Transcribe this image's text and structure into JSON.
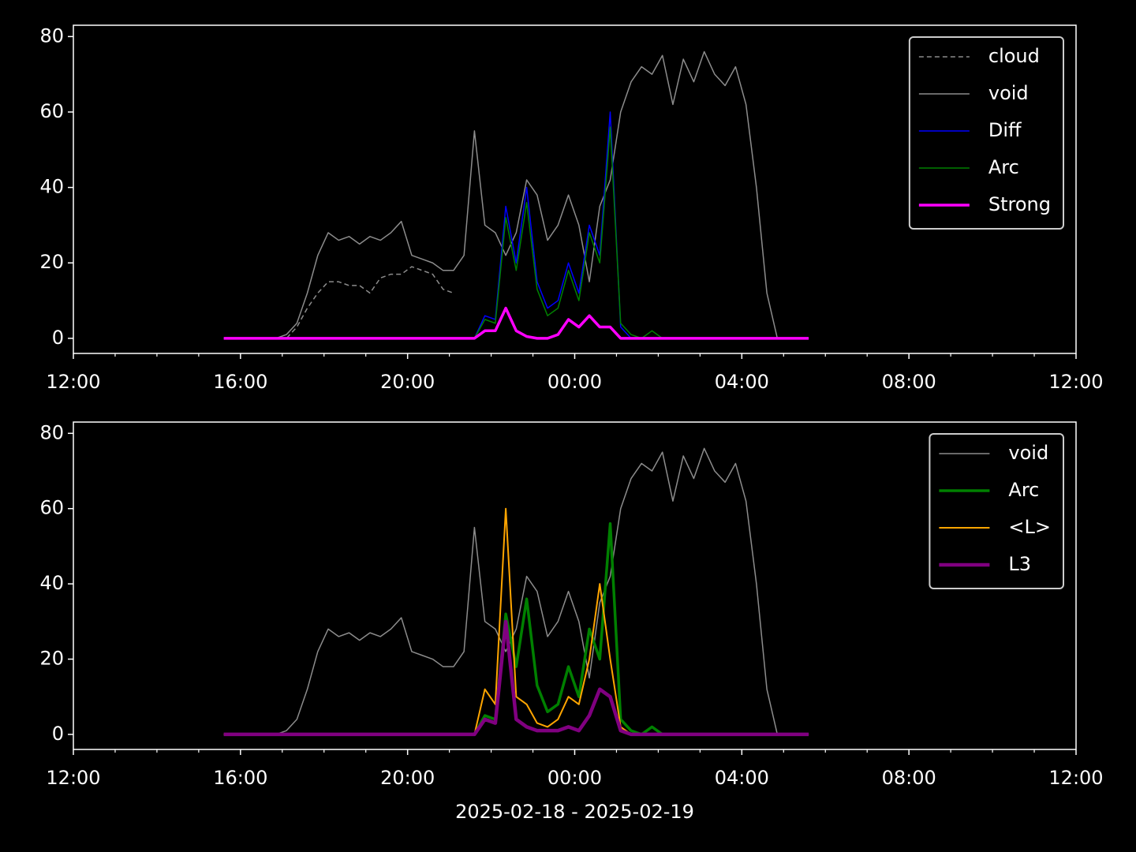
{
  "chart_data": [
    {
      "type": "line",
      "x": [
        15.6,
        15.85,
        16.1,
        16.35,
        16.6,
        16.85,
        17.1,
        17.35,
        17.6,
        17.85,
        18.1,
        18.35,
        18.6,
        18.85,
        19.1,
        19.35,
        19.6,
        19.85,
        20.1,
        20.35,
        20.6,
        20.85,
        21.1,
        21.35,
        21.6,
        21.85,
        22.1,
        22.35,
        22.6,
        22.85,
        23.1,
        23.35,
        23.6,
        23.85,
        24.1,
        24.35,
        24.6,
        24.85,
        25.1,
        25.35,
        25.6,
        25.85,
        26.1,
        26.35,
        26.6,
        26.85,
        27.1,
        27.35,
        27.6,
        27.85,
        28.1,
        28.35,
        28.6,
        28.85,
        29.1,
        29.35,
        29.6
      ],
      "series": [
        {
          "name": "cloud",
          "color": "#8c8c8c",
          "linestyle": "dashed",
          "linewidth": 1.5,
          "values": [
            0,
            0,
            0,
            0,
            0,
            0,
            0,
            3,
            8,
            12,
            15,
            15,
            14,
            14,
            12,
            16,
            17,
            17,
            19,
            18,
            17,
            13,
            12,
            null,
            null,
            null,
            null,
            null,
            null,
            null,
            null,
            null,
            null,
            null,
            null,
            null,
            null,
            null,
            null,
            null,
            null,
            null,
            null,
            null,
            null,
            null,
            null,
            null,
            null,
            null,
            null,
            null,
            null,
            null,
            null,
            null,
            null
          ]
        },
        {
          "name": "void",
          "color": "#8c8c8c",
          "linestyle": "solid",
          "linewidth": 1.5,
          "values": [
            0,
            0,
            0,
            0,
            0,
            0,
            1,
            4,
            12,
            22,
            28,
            26,
            27,
            25,
            27,
            26,
            28,
            31,
            22,
            21,
            20,
            18,
            18,
            22,
            55,
            30,
            28,
            22,
            28,
            42,
            38,
            26,
            30,
            38,
            30,
            15,
            35,
            42,
            60,
            68,
            72,
            70,
            75,
            62,
            74,
            68,
            76,
            70,
            67,
            72,
            62,
            40,
            12,
            0,
            0,
            0,
            0
          ]
        },
        {
          "name": "Diff",
          "color": "#0000ff",
          "linestyle": "solid",
          "linewidth": 1.5,
          "values": [
            0,
            0,
            0,
            0,
            0,
            0,
            0,
            0,
            0,
            0,
            0,
            0,
            0,
            0,
            0,
            0,
            0,
            0,
            0,
            0,
            0,
            0,
            0,
            0,
            0,
            6,
            5,
            35,
            20,
            40,
            15,
            8,
            10,
            20,
            12,
            30,
            22,
            60,
            3,
            0,
            0,
            0,
            0,
            0,
            0,
            0,
            0,
            0,
            0,
            0,
            0,
            0,
            0,
            0,
            0,
            0,
            0
          ]
        },
        {
          "name": "Arc",
          "color": "#008000",
          "linestyle": "solid",
          "linewidth": 1.5,
          "values": [
            0,
            0,
            0,
            0,
            0,
            0,
            0,
            0,
            0,
            0,
            0,
            0,
            0,
            0,
            0,
            0,
            0,
            0,
            0,
            0,
            0,
            0,
            0,
            0,
            0,
            5,
            4,
            32,
            18,
            36,
            13,
            6,
            8,
            18,
            10,
            28,
            20,
            56,
            4,
            1,
            0,
            2,
            0,
            0,
            0,
            0,
            0,
            0,
            0,
            0,
            0,
            0,
            0,
            0,
            0,
            0,
            0
          ]
        },
        {
          "name": "Strong",
          "color": "#ff00ff",
          "linestyle": "solid",
          "linewidth": 3.5,
          "values": [
            0,
            0,
            0,
            0,
            0,
            0,
            0,
            0,
            0,
            0,
            0,
            0,
            0,
            0,
            0,
            0,
            0,
            0,
            0,
            0,
            0,
            0,
            0,
            0,
            0,
            2,
            2,
            8,
            2,
            0.5,
            0,
            0,
            1,
            5,
            3,
            6,
            3,
            3,
            0,
            0,
            0,
            0,
            0,
            0,
            0,
            0,
            0,
            0,
            0,
            0,
            0,
            0,
            0,
            0,
            0,
            0,
            0
          ]
        }
      ],
      "xlim": [
        12,
        36
      ],
      "xticks": [
        {
          "value": 12,
          "label": "12:00"
        },
        {
          "value": 16,
          "label": "16:00"
        },
        {
          "value": 20,
          "label": "20:00"
        },
        {
          "value": 24,
          "label": "00:00"
        },
        {
          "value": 28,
          "label": "04:00"
        },
        {
          "value": 32,
          "label": "08:00"
        },
        {
          "value": 36,
          "label": "12:00"
        }
      ],
      "ylim": [
        -4,
        83
      ],
      "yticks": [
        0,
        20,
        40,
        60,
        80
      ],
      "legend": "upper right"
    },
    {
      "type": "line",
      "x": [
        15.6,
        15.85,
        16.1,
        16.35,
        16.6,
        16.85,
        17.1,
        17.35,
        17.6,
        17.85,
        18.1,
        18.35,
        18.6,
        18.85,
        19.1,
        19.35,
        19.6,
        19.85,
        20.1,
        20.35,
        20.6,
        20.85,
        21.1,
        21.35,
        21.6,
        21.85,
        22.1,
        22.35,
        22.6,
        22.85,
        23.1,
        23.35,
        23.6,
        23.85,
        24.1,
        24.35,
        24.6,
        24.85,
        25.1,
        25.35,
        25.6,
        25.85,
        26.1,
        26.35,
        26.6,
        26.85,
        27.1,
        27.35,
        27.6,
        27.85,
        28.1,
        28.35,
        28.6,
        28.85,
        29.1,
        29.35,
        29.6
      ],
      "xlabel": "2025-02-18 - 2025-02-19",
      "series": [
        {
          "name": "void",
          "color": "#8c8c8c",
          "linestyle": "solid",
          "linewidth": 1.5,
          "values": [
            0,
            0,
            0,
            0,
            0,
            0,
            1,
            4,
            12,
            22,
            28,
            26,
            27,
            25,
            27,
            26,
            28,
            31,
            22,
            21,
            20,
            18,
            18,
            22,
            55,
            30,
            28,
            22,
            28,
            42,
            38,
            26,
            30,
            38,
            30,
            15,
            35,
            42,
            60,
            68,
            72,
            70,
            75,
            62,
            74,
            68,
            76,
            70,
            67,
            72,
            62,
            40,
            12,
            0,
            0,
            0,
            0
          ]
        },
        {
          "name": "Arc",
          "color": "#008000",
          "linestyle": "solid",
          "linewidth": 3.5,
          "values": [
            0,
            0,
            0,
            0,
            0,
            0,
            0,
            0,
            0,
            0,
            0,
            0,
            0,
            0,
            0,
            0,
            0,
            0,
            0,
            0,
            0,
            0,
            0,
            0,
            0,
            5,
            4,
            32,
            18,
            36,
            13,
            6,
            8,
            18,
            10,
            28,
            20,
            56,
            4,
            1,
            0,
            2,
            0,
            0,
            0,
            0,
            0,
            0,
            0,
            0,
            0,
            0,
            0,
            0,
            0,
            0,
            0
          ]
        },
        {
          "name": "<L>",
          "color": "#ffa500",
          "linestyle": "solid",
          "linewidth": 2,
          "values": [
            0,
            0,
            0,
            0,
            0,
            0,
            0,
            0,
            0,
            0,
            0,
            0,
            0,
            0,
            0,
            0,
            0,
            0,
            0,
            0,
            0,
            0,
            0,
            0,
            0,
            12,
            8,
            60,
            10,
            8,
            3,
            2,
            4,
            10,
            8,
            20,
            40,
            20,
            2,
            0,
            0,
            0,
            0,
            0,
            0,
            0,
            0,
            0,
            0,
            0,
            0,
            0,
            0,
            0,
            0,
            0,
            0
          ]
        },
        {
          "name": "L3",
          "color": "#800080",
          "linestyle": "solid",
          "linewidth": 4.5,
          "values": [
            0,
            0,
            0,
            0,
            0,
            0,
            0,
            0,
            0,
            0,
            0,
            0,
            0,
            0,
            0,
            0,
            0,
            0,
            0,
            0,
            0,
            0,
            0,
            0,
            0,
            4,
            3,
            30,
            4,
            2,
            1,
            1,
            1,
            2,
            1,
            5,
            12,
            10,
            1,
            0,
            0,
            0,
            0,
            0,
            0,
            0,
            0,
            0,
            0,
            0,
            0,
            0,
            0,
            0,
            0,
            0,
            0
          ]
        }
      ],
      "xlim": [
        12,
        36
      ],
      "xticks": [
        {
          "value": 12,
          "label": "12:00"
        },
        {
          "value": 16,
          "label": "16:00"
        },
        {
          "value": 20,
          "label": "20:00"
        },
        {
          "value": 24,
          "label": "00:00"
        },
        {
          "value": 28,
          "label": "04:00"
        },
        {
          "value": 32,
          "label": "08:00"
        },
        {
          "value": 36,
          "label": "12:00"
        }
      ],
      "ylim": [
        -4,
        83
      ],
      "yticks": [
        0,
        20,
        40,
        60,
        80
      ],
      "legend": "upper right"
    }
  ]
}
